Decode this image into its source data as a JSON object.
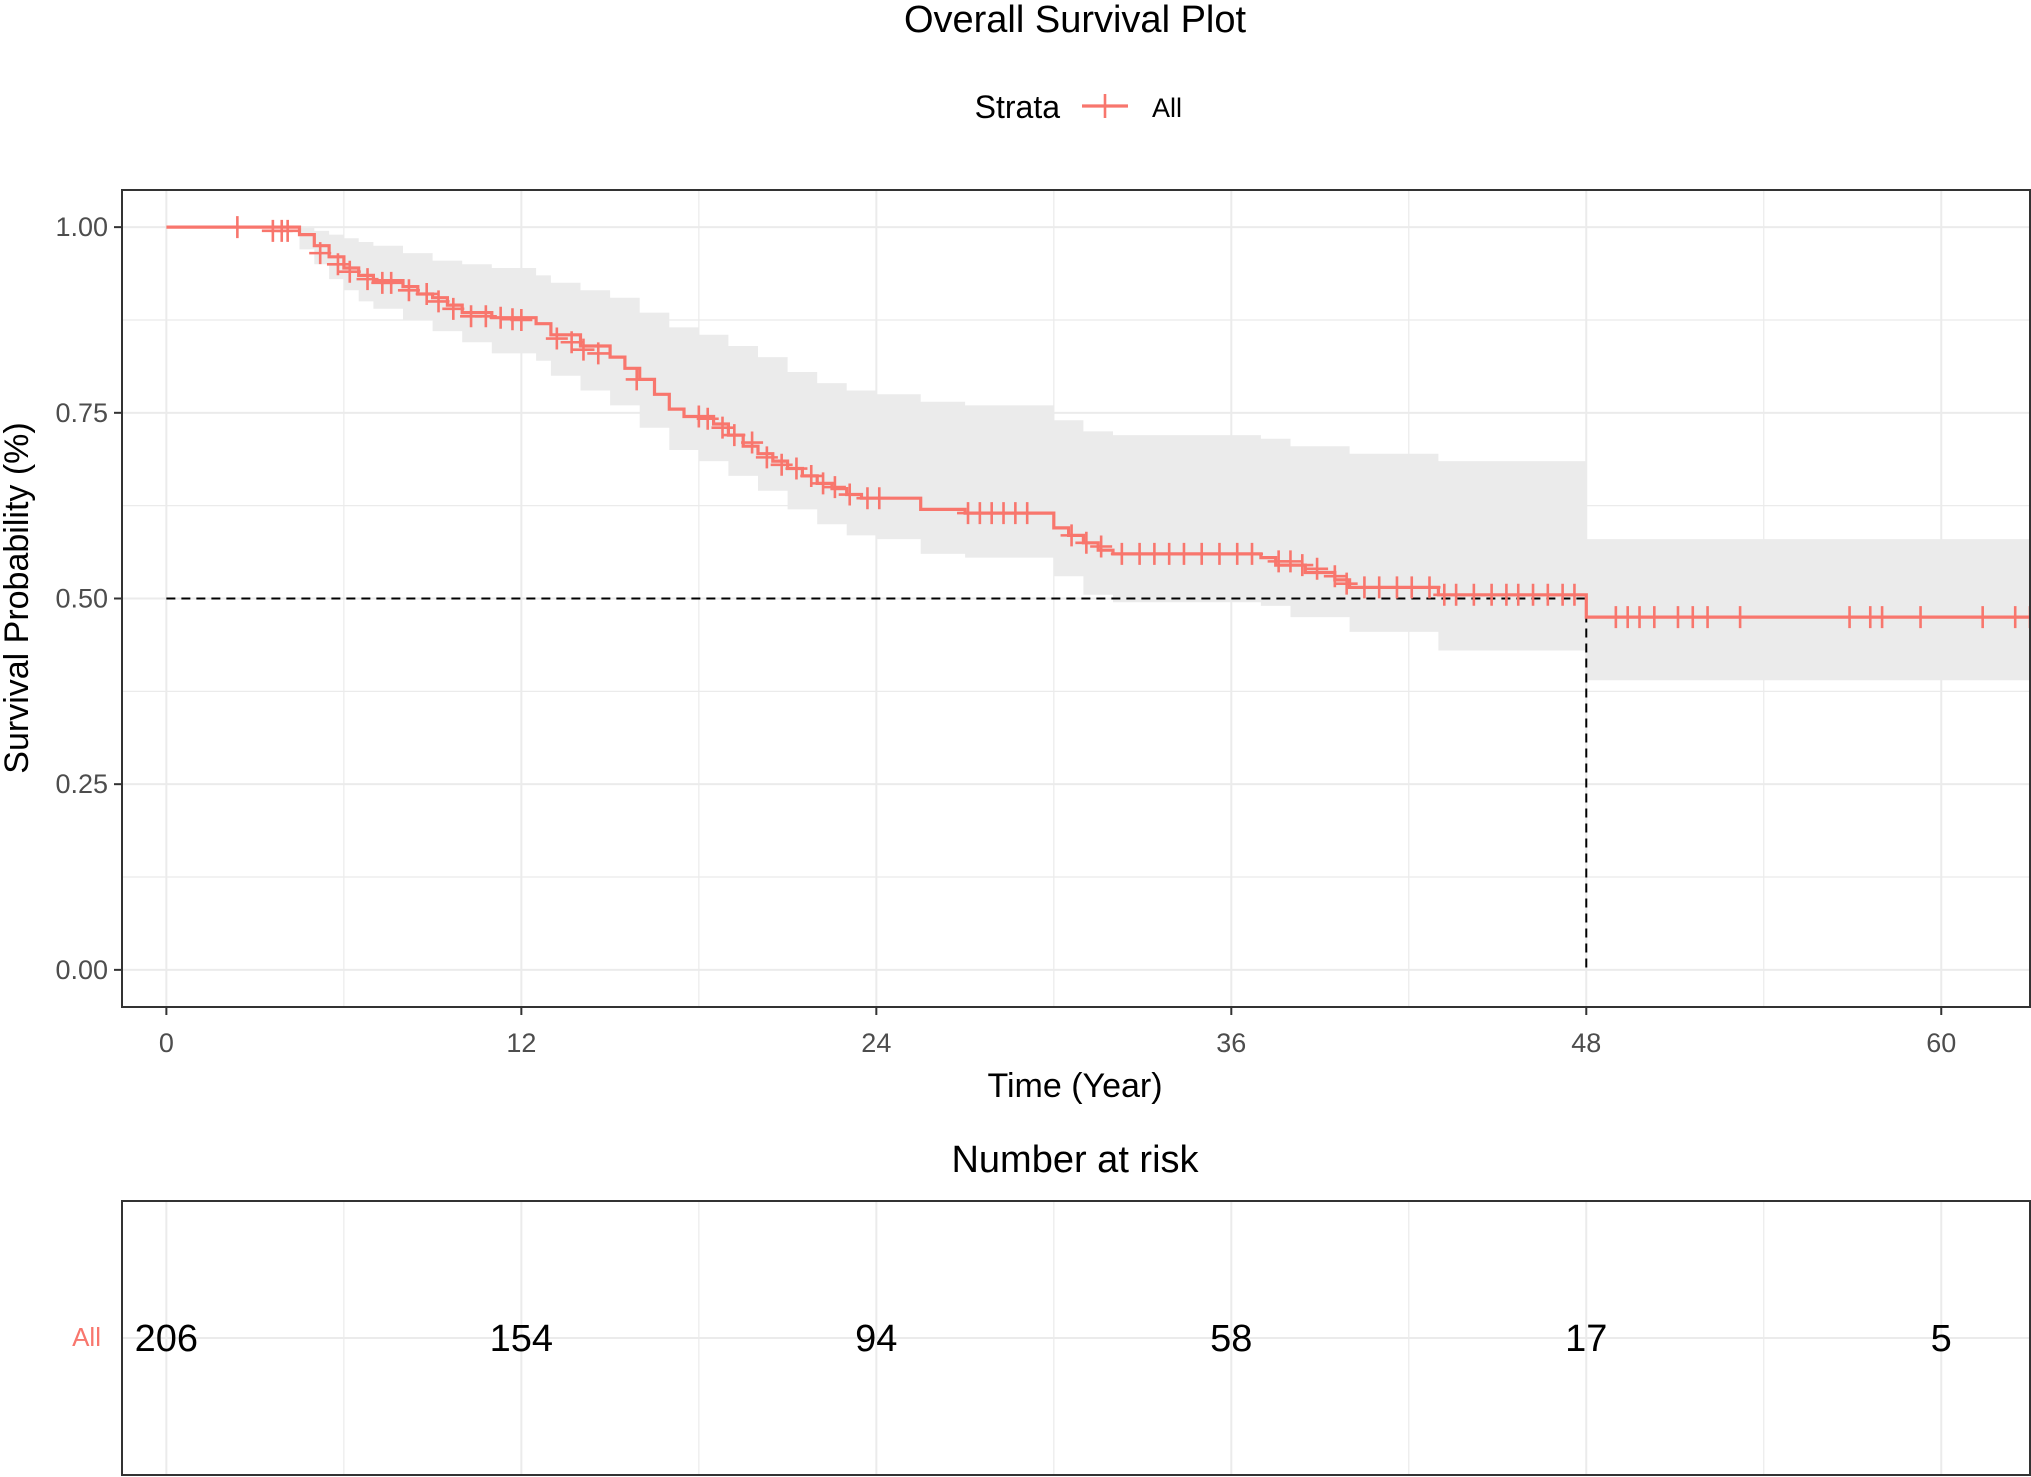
{
  "colors": {
    "accent": "#F8766D",
    "ci_fill": "#EBEBEB",
    "grid": "#EBEBEB",
    "text": "#000000",
    "tick_text": "#4D4D4D"
  },
  "chart_data": [
    {
      "type": "line",
      "title": "Overall Survival Plot",
      "xlabel": "Time (Year)",
      "ylabel": "Survival Probability (%)",
      "xlim": [
        -1.5,
        63
      ],
      "ylim": [
        -0.05,
        1.05
      ],
      "x_ticks": [
        0,
        12,
        24,
        36,
        48,
        60
      ],
      "x_tick_labels": [
        "0",
        "12",
        "24",
        "36",
        "48",
        "60"
      ],
      "y_ticks": [
        0,
        0.25,
        0.5,
        0.75,
        1
      ],
      "y_tick_labels": [
        "0.00",
        "0.25",
        "0.50",
        "0.75",
        "1.00"
      ],
      "grid": true,
      "legend": {
        "title": "Strata",
        "position": "top",
        "entries": [
          "All"
        ]
      },
      "median_line": {
        "y": 0.5,
        "x": 48
      },
      "series": [
        {
          "name": "All",
          "color": "#F8766D",
          "steps": [
            [
              0,
              1.0
            ],
            [
              4.5,
              0.99
            ],
            [
              5,
              0.975
            ],
            [
              5.5,
              0.96
            ],
            [
              6,
              0.945
            ],
            [
              6.5,
              0.935
            ],
            [
              7,
              0.928
            ],
            [
              8,
              0.92
            ],
            [
              8.5,
              0.91
            ],
            [
              9,
              0.905
            ],
            [
              9.5,
              0.895
            ],
            [
              10,
              0.885
            ],
            [
              11,
              0.878
            ],
            [
              12.5,
              0.87
            ],
            [
              13,
              0.855
            ],
            [
              14,
              0.84
            ],
            [
              15,
              0.825
            ],
            [
              15.5,
              0.81
            ],
            [
              16,
              0.795
            ],
            [
              16.5,
              0.775
            ],
            [
              17,
              0.755
            ],
            [
              17.5,
              0.745
            ],
            [
              18.5,
              0.735
            ],
            [
              19,
              0.72
            ],
            [
              19.5,
              0.705
            ],
            [
              20,
              0.695
            ],
            [
              20.5,
              0.685
            ],
            [
              21,
              0.675
            ],
            [
              21.5,
              0.665
            ],
            [
              22,
              0.655
            ],
            [
              22.5,
              0.648
            ],
            [
              23,
              0.64
            ],
            [
              23.5,
              0.635
            ],
            [
              25.5,
              0.62
            ],
            [
              27,
              0.615
            ],
            [
              30,
              0.595
            ],
            [
              30.5,
              0.585
            ],
            [
              31,
              0.575
            ],
            [
              31.5,
              0.565
            ],
            [
              32,
              0.56
            ],
            [
              37,
              0.555
            ],
            [
              37.5,
              0.545
            ],
            [
              38.5,
              0.535
            ],
            [
              39.5,
              0.525
            ],
            [
              40,
              0.515
            ],
            [
              43,
              0.505
            ],
            [
              48,
              0.475
            ]
          ],
          "ci_steps": [
            [
              0,
              1.0,
              1.0
            ],
            [
              4.5,
              0.97,
              1.0
            ],
            [
              5,
              0.95,
              0.995
            ],
            [
              5.5,
              0.93,
              0.99
            ],
            [
              6,
              0.915,
              0.985
            ],
            [
              6.5,
              0.9,
              0.98
            ],
            [
              7,
              0.89,
              0.975
            ],
            [
              8,
              0.875,
              0.965
            ],
            [
              9,
              0.86,
              0.955
            ],
            [
              10,
              0.845,
              0.95
            ],
            [
              11,
              0.83,
              0.945
            ],
            [
              12.5,
              0.82,
              0.935
            ],
            [
              13,
              0.8,
              0.925
            ],
            [
              14,
              0.78,
              0.915
            ],
            [
              15,
              0.76,
              0.905
            ],
            [
              16,
              0.73,
              0.885
            ],
            [
              17,
              0.7,
              0.865
            ],
            [
              18,
              0.685,
              0.855
            ],
            [
              19,
              0.665,
              0.84
            ],
            [
              20,
              0.645,
              0.825
            ],
            [
              21,
              0.62,
              0.805
            ],
            [
              22,
              0.6,
              0.79
            ],
            [
              23,
              0.585,
              0.78
            ],
            [
              24,
              0.58,
              0.775
            ],
            [
              25.5,
              0.56,
              0.765
            ],
            [
              27,
              0.555,
              0.76
            ],
            [
              30,
              0.53,
              0.74
            ],
            [
              31,
              0.505,
              0.725
            ],
            [
              32,
              0.495,
              0.72
            ],
            [
              37,
              0.49,
              0.715
            ],
            [
              38,
              0.475,
              0.705
            ],
            [
              40,
              0.455,
              0.695
            ],
            [
              43,
              0.43,
              0.685
            ],
            [
              48,
              0.39,
              0.58
            ],
            [
              63,
              0.39,
              0.58
            ]
          ],
          "censored": [
            [
              2.4,
              1.0
            ],
            [
              3.6,
              0.995
            ],
            [
              3.9,
              0.995
            ],
            [
              4.1,
              0.995
            ],
            [
              5.2,
              0.965
            ],
            [
              5.8,
              0.95
            ],
            [
              6.2,
              0.94
            ],
            [
              6.8,
              0.93
            ],
            [
              7.3,
              0.925
            ],
            [
              7.6,
              0.925
            ],
            [
              8.2,
              0.915
            ],
            [
              8.8,
              0.91
            ],
            [
              9.2,
              0.9
            ],
            [
              9.7,
              0.89
            ],
            [
              10.3,
              0.88
            ],
            [
              10.8,
              0.88
            ],
            [
              11.3,
              0.878
            ],
            [
              11.7,
              0.876
            ],
            [
              12.0,
              0.875
            ],
            [
              13.2,
              0.85
            ],
            [
              13.7,
              0.845
            ],
            [
              14.1,
              0.835
            ],
            [
              14.6,
              0.83
            ],
            [
              15.9,
              0.795
            ],
            [
              18.0,
              0.745
            ],
            [
              18.3,
              0.742
            ],
            [
              18.8,
              0.73
            ],
            [
              19.2,
              0.72
            ],
            [
              19.8,
              0.71
            ],
            [
              20.3,
              0.69
            ],
            [
              20.8,
              0.68
            ],
            [
              21.3,
              0.675
            ],
            [
              21.8,
              0.665
            ],
            [
              22.2,
              0.655
            ],
            [
              22.6,
              0.65
            ],
            [
              23.1,
              0.64
            ],
            [
              23.7,
              0.635
            ],
            [
              24.1,
              0.635
            ],
            [
              27.1,
              0.615
            ],
            [
              27.5,
              0.615
            ],
            [
              27.9,
              0.615
            ],
            [
              28.3,
              0.615
            ],
            [
              28.7,
              0.615
            ],
            [
              29.1,
              0.615
            ],
            [
              30.6,
              0.585
            ],
            [
              31.1,
              0.575
            ],
            [
              31.6,
              0.57
            ],
            [
              32.3,
              0.56
            ],
            [
              32.9,
              0.56
            ],
            [
              33.4,
              0.56
            ],
            [
              33.9,
              0.56
            ],
            [
              34.4,
              0.56
            ],
            [
              35.0,
              0.56
            ],
            [
              35.6,
              0.56
            ],
            [
              36.2,
              0.56
            ],
            [
              36.7,
              0.56
            ],
            [
              37.6,
              0.55
            ],
            [
              38.0,
              0.55
            ],
            [
              38.4,
              0.545
            ],
            [
              38.9,
              0.54
            ],
            [
              39.5,
              0.53
            ],
            [
              39.9,
              0.52
            ],
            [
              40.5,
              0.515
            ],
            [
              41.0,
              0.515
            ],
            [
              41.6,
              0.515
            ],
            [
              42.1,
              0.515
            ],
            [
              42.7,
              0.515
            ],
            [
              43.2,
              0.505
            ],
            [
              43.6,
              0.505
            ],
            [
              44.2,
              0.505
            ],
            [
              44.8,
              0.505
            ],
            [
              45.3,
              0.505
            ],
            [
              45.7,
              0.505
            ],
            [
              46.2,
              0.505
            ],
            [
              46.7,
              0.505
            ],
            [
              47.2,
              0.505
            ],
            [
              47.6,
              0.505
            ],
            [
              49.0,
              0.475
            ],
            [
              49.4,
              0.475
            ],
            [
              49.8,
              0.475
            ],
            [
              50.3,
              0.475
            ],
            [
              51.1,
              0.475
            ],
            [
              51.6,
              0.475
            ],
            [
              52.1,
              0.475
            ],
            [
              53.2,
              0.475
            ],
            [
              56.9,
              0.475
            ],
            [
              57.6,
              0.475
            ],
            [
              58.0,
              0.475
            ],
            [
              59.3,
              0.475
            ],
            [
              61.4,
              0.475
            ],
            [
              62.5,
              0.475
            ],
            [
              63.0,
              0.475
            ]
          ]
        }
      ]
    },
    {
      "type": "table",
      "title": "Number at risk",
      "row_labels": [
        "All"
      ],
      "x": [
        0,
        12,
        24,
        36,
        48,
        60
      ],
      "values": [
        206,
        154,
        94,
        58,
        17,
        5
      ]
    }
  ]
}
